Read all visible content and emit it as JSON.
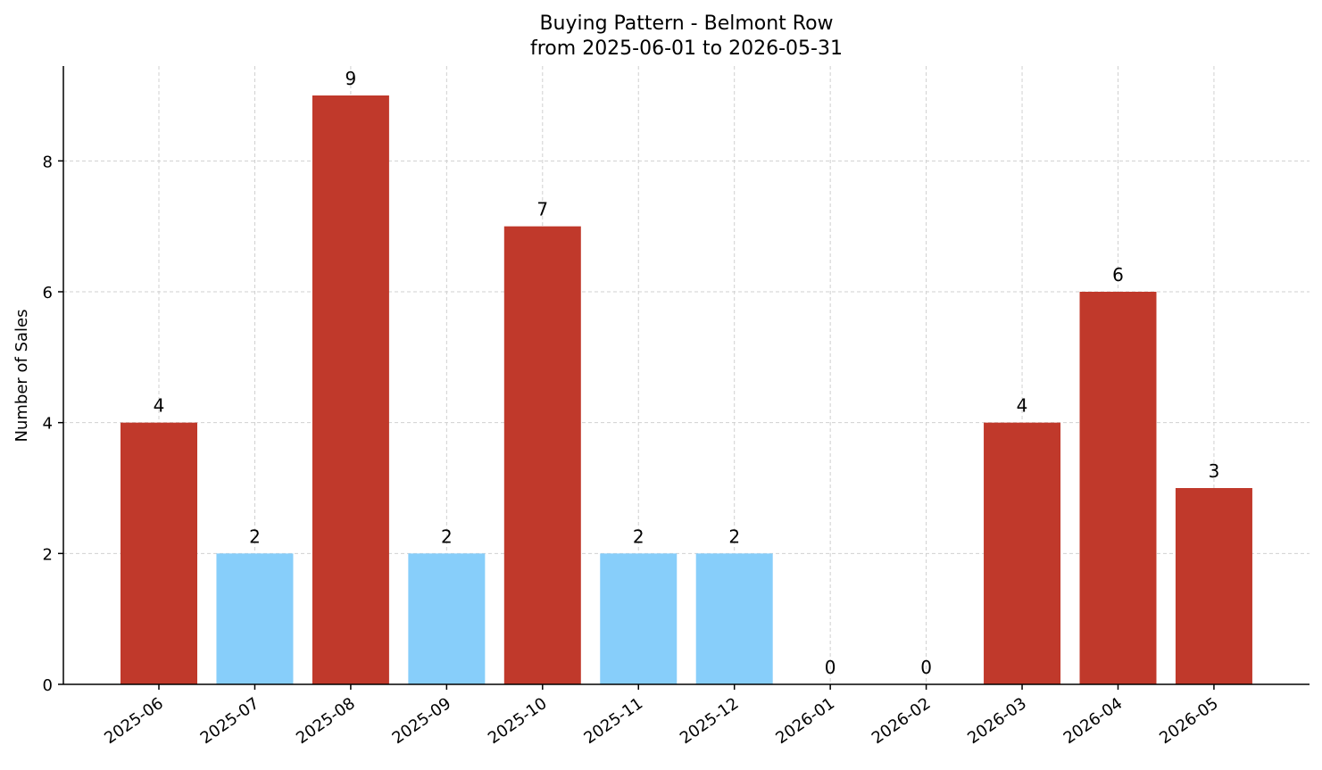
{
  "chart_data": {
    "type": "bar",
    "title": "Buying Pattern - Belmont Row",
    "subtitle": "from 2025-06-01 to 2026-05-31",
    "xlabel": "",
    "ylabel": "Number of Sales",
    "categories": [
      "2025-06",
      "2025-07",
      "2025-08",
      "2025-09",
      "2025-10",
      "2025-11",
      "2025-12",
      "2026-01",
      "2026-02",
      "2026-03",
      "2026-04",
      "2026-05"
    ],
    "values": [
      4,
      2,
      9,
      2,
      7,
      2,
      2,
      0,
      0,
      4,
      6,
      3
    ],
    "bar_colors": [
      "#c0392b",
      "#87cefa",
      "#c0392b",
      "#87cefa",
      "#c0392b",
      "#87cefa",
      "#87cefa",
      "#c0392b",
      "#c0392b",
      "#c0392b",
      "#c0392b",
      "#c0392b"
    ],
    "ylim": [
      0,
      9.45
    ],
    "yticks": [
      0,
      2,
      4,
      6,
      8
    ],
    "grid": true,
    "legend": "none"
  }
}
